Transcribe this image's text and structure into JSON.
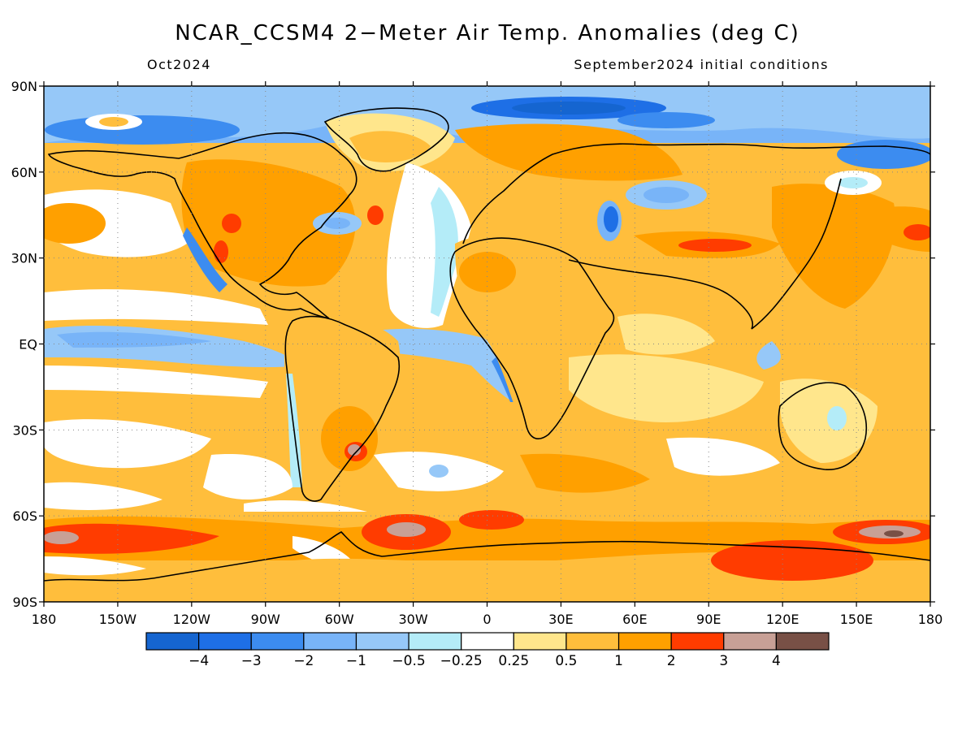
{
  "title": "NCAR_CCSM4 2−Meter Air Temp. Anomalies (deg C)",
  "valid_month": "Oct2024",
  "initial_conditions": "September2024 initial conditions",
  "axes": {
    "lat_labels": [
      "90N",
      "60N",
      "30N",
      "EQ",
      "30S",
      "60S",
      "90S"
    ],
    "lon_labels": [
      "180",
      "150W",
      "120W",
      "90W",
      "60W",
      "30W",
      "0",
      "30E",
      "60E",
      "90E",
      "120E",
      "150E",
      "180"
    ]
  },
  "colorbar": {
    "colors": [
      "#1565d0",
      "#1e6fe6",
      "#3c8cf0",
      "#78b4f8",
      "#96c8f8",
      "#b4ecf8",
      "#ffffff",
      "#ffe68c",
      "#ffbe3c",
      "#ffa000",
      "#ff3c00",
      "#c8a096",
      "#785046"
    ],
    "labels": [
      "−4",
      "−3",
      "−2",
      "−1",
      "−0.5",
      "−0.25",
      "0.25",
      "0.5",
      "1",
      "2",
      "3",
      "4"
    ]
  }
}
